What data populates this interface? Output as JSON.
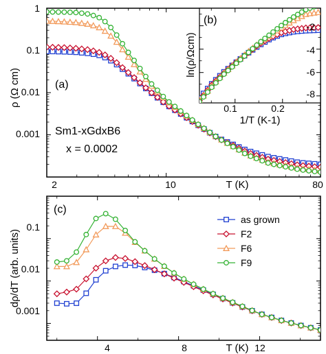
{
  "series_styles": [
    {
      "name": "as grown",
      "color": "#1f3fd1",
      "marker": "square"
    },
    {
      "name": "F2",
      "color": "#c8102e",
      "marker": "diamond"
    },
    {
      "name": "F6",
      "color": "#f29a5a",
      "marker": "triangle"
    },
    {
      "name": "F9",
      "color": "#33b233",
      "marker": "circle"
    }
  ],
  "chart_data": [
    {
      "panel": "(a)",
      "type": "line",
      "xscale": "log",
      "yscale": "log",
      "xlim": [
        2,
        80
      ],
      "ylim": [
        0.0001,
        1
      ],
      "xlabel": "T (K)",
      "ylabel": "ρ (Ω cm)",
      "x_ticks": [
        "2",
        "10",
        "80"
      ],
      "y_ticks": [
        "1",
        "0.1",
        "0.01",
        "0.001"
      ],
      "annotations": [
        "Sm1-xGdxB6",
        "x = 0.0002"
      ],
      "series": [
        {
          "name": "as grown",
          "x": [
            2.0,
            2.5,
            3.0,
            3.5,
            4.0,
            4.5,
            5.0,
            6.0,
            8.0,
            10,
            15,
            20,
            30,
            40,
            60,
            80
          ],
          "y": [
            0.095,
            0.093,
            0.09,
            0.085,
            0.078,
            0.065,
            0.05,
            0.028,
            0.0105,
            0.0052,
            0.0018,
            0.00085,
            0.00042,
            0.0003,
            0.00022,
            0.0002
          ]
        },
        {
          "name": "F2",
          "x": [
            2.0,
            2.5,
            3.0,
            3.5,
            4.0,
            4.5,
            5.0,
            6.0,
            8.0,
            10,
            15,
            20,
            30,
            40,
            60,
            80
          ],
          "y": [
            0.12,
            0.117,
            0.112,
            0.104,
            0.092,
            0.075,
            0.056,
            0.03,
            0.0108,
            0.0053,
            0.0018,
            0.00084,
            0.00038,
            0.00026,
            0.00019,
            0.00017
          ]
        },
        {
          "name": "F6",
          "x": [
            2.0,
            2.5,
            3.0,
            3.5,
            4.0,
            4.5,
            5.0,
            6.0,
            8.0,
            10,
            15,
            20,
            30,
            40,
            60,
            80
          ],
          "y": [
            0.5,
            0.48,
            0.46,
            0.42,
            0.36,
            0.27,
            0.18,
            0.07,
            0.016,
            0.0065,
            0.0019,
            0.00086,
            0.00034,
            0.00022,
            0.00016,
            0.00014
          ]
        },
        {
          "name": "F9",
          "x": [
            2.0,
            2.5,
            3.0,
            3.5,
            4.0,
            4.5,
            5.0,
            6.0,
            8.0,
            10,
            15,
            20,
            30,
            40,
            60,
            80
          ],
          "y": [
            0.82,
            0.81,
            0.79,
            0.73,
            0.62,
            0.45,
            0.27,
            0.09,
            0.018,
            0.0068,
            0.0019,
            0.00085,
            0.00033,
            0.00021,
            0.00015,
            0.00013
          ]
        }
      ]
    },
    {
      "panel": "(b)",
      "type": "line",
      "xlim": [
        0.025,
        0.28
      ],
      "ylim": [
        -8.6,
        -0.5
      ],
      "xlabel": "1/T (K-1)",
      "ylabel": "ln(ρ/Ωcm)",
      "x_ticks": [
        "0.1",
        "0.2"
      ],
      "y_ticks": [
        "-2",
        "-4",
        "-6",
        "-8"
      ],
      "series": [
        {
          "name": "as grown",
          "x": [
            0.025,
            0.05,
            0.075,
            0.1,
            0.125,
            0.15,
            0.175,
            0.2,
            0.225,
            0.25,
            0.275
          ],
          "y": [
            -8.2,
            -7.0,
            -6.0,
            -5.2,
            -4.4,
            -3.7,
            -3.1,
            -2.7,
            -2.5,
            -2.42,
            -2.38
          ]
        },
        {
          "name": "F2",
          "x": [
            0.025,
            0.05,
            0.075,
            0.1,
            0.125,
            0.15,
            0.175,
            0.2,
            0.225,
            0.25,
            0.275
          ],
          "y": [
            -8.4,
            -7.1,
            -6.1,
            -5.2,
            -4.4,
            -3.6,
            -3.0,
            -2.55,
            -2.3,
            -2.18,
            -2.15
          ]
        },
        {
          "name": "F6",
          "x": [
            0.025,
            0.05,
            0.075,
            0.1,
            0.125,
            0.15,
            0.175,
            0.2,
            0.225,
            0.25,
            0.275
          ],
          "y": [
            -8.4,
            -7.2,
            -6.1,
            -5.2,
            -4.3,
            -3.5,
            -2.8,
            -2.1,
            -1.5,
            -1.0,
            -0.85
          ]
        },
        {
          "name": "F9",
          "x": [
            0.025,
            0.05,
            0.075,
            0.1,
            0.125,
            0.15,
            0.175,
            0.2,
            0.225,
            0.25,
            0.275
          ],
          "y": [
            -8.5,
            -7.3,
            -6.2,
            -5.3,
            -4.4,
            -3.5,
            -2.7,
            -1.9,
            -1.2,
            -0.6,
            -0.25
          ]
        }
      ]
    },
    {
      "panel": "(c)",
      "type": "line",
      "xlim": [
        1.5,
        15.0
      ],
      "ylim": [
        0.0004,
        1
      ],
      "yscale": "log",
      "xlabel": "T (K)",
      "ylabel": "dρ/dT (arb. units)",
      "x_ticks": [
        "4",
        "8",
        "12"
      ],
      "y_ticks": [
        "0.1",
        "0.01",
        "0.001"
      ],
      "legend": "top-right",
      "series": [
        {
          "name": "as grown",
          "x": [
            2.0,
            2.5,
            3.0,
            3.5,
            4.0,
            4.5,
            5.0,
            5.5,
            6.0,
            7.0,
            8.0,
            9.0,
            10.0,
            11.0,
            12.0,
            13.0,
            14.0,
            15.0
          ],
          "y": [
            0.003,
            0.0029,
            0.003,
            0.0055,
            0.012,
            0.019,
            0.023,
            0.024,
            0.023,
            0.017,
            0.011,
            0.0068,
            0.0042,
            0.0026,
            0.0017,
            0.0012,
            0.0009,
            0.0007
          ]
        },
        {
          "name": "F2",
          "x": [
            2.0,
            2.5,
            3.0,
            3.5,
            4.0,
            4.5,
            5.0,
            5.5,
            6.0,
            7.0,
            8.0,
            9.0,
            10.0,
            11.0,
            12.0,
            13.0,
            14.0,
            15.0
          ],
          "y": [
            0.005,
            0.0055,
            0.0065,
            0.012,
            0.022,
            0.032,
            0.037,
            0.033,
            0.027,
            0.017,
            0.0105,
            0.0065,
            0.0041,
            0.0026,
            0.0017,
            0.0012,
            0.0009,
            0.0007
          ]
        },
        {
          "name": "F6",
          "x": [
            2.0,
            2.5,
            3.0,
            3.5,
            4.0,
            4.5,
            5.0,
            5.5,
            6.0,
            7.0,
            8.0,
            9.0,
            10.0,
            11.0,
            12.0,
            13.0,
            14.0,
            15.0
          ],
          "y": [
            0.022,
            0.022,
            0.028,
            0.06,
            0.14,
            0.21,
            0.19,
            0.12,
            0.07,
            0.028,
            0.013,
            0.0072,
            0.0043,
            0.0027,
            0.0017,
            0.0012,
            0.0009,
            0.0007
          ]
        },
        {
          "name": "F9",
          "x": [
            2.0,
            2.5,
            3.0,
            3.5,
            4.0,
            4.5,
            5.0,
            5.5,
            6.0,
            7.0,
            8.0,
            9.0,
            10.0,
            11.0,
            12.0,
            13.0,
            14.0,
            15.0
          ],
          "y": [
            0.028,
            0.03,
            0.05,
            0.14,
            0.34,
            0.4,
            0.26,
            0.13,
            0.07,
            0.028,
            0.013,
            0.0072,
            0.0043,
            0.0027,
            0.0017,
            0.0012,
            0.0009,
            0.0007
          ]
        }
      ]
    }
  ]
}
